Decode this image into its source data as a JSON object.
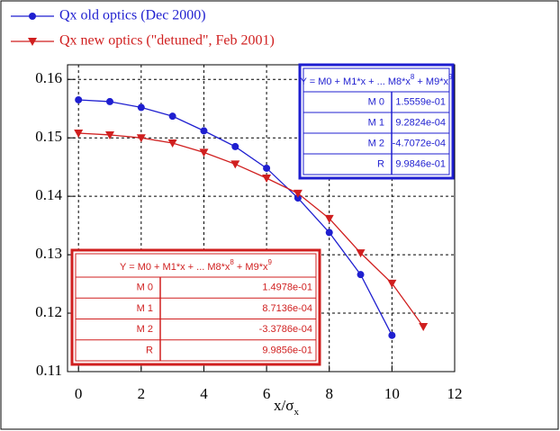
{
  "chart_data": {
    "type": "line",
    "xlabel": "x/σ",
    "xlabel_sub": "x",
    "xlim": [
      -0.35,
      12
    ],
    "ylim": [
      0.11,
      0.1625
    ],
    "xticks": [
      0,
      2,
      4,
      6,
      8,
      10,
      12
    ],
    "yticks": [
      0.11,
      0.12,
      0.13,
      0.14,
      0.15,
      0.16
    ],
    "grid": true,
    "legend": "top-left",
    "series": [
      {
        "name": "Qx old optics (Dec 2000)",
        "color": "#1f1fd0",
        "marker": "circle",
        "x": [
          0,
          1,
          2,
          3,
          4,
          5,
          6,
          7,
          8,
          9,
          10
        ],
        "values": [
          0.1565,
          0.1562,
          0.1552,
          0.1537,
          0.1512,
          0.1485,
          0.1448,
          0.1397,
          0.1338,
          0.1266,
          0.1162
        ]
      },
      {
        "name": "Qx new optics (\"detuned\", Feb 2001)",
        "color": "#d01f1f",
        "marker": "triangle-down",
        "x": [
          0,
          1,
          2,
          3,
          4,
          5,
          6,
          7,
          8,
          9,
          10,
          11
        ],
        "values": [
          0.1508,
          0.1505,
          0.15,
          0.1491,
          0.1475,
          0.1455,
          0.1431,
          0.1405,
          0.1362,
          0.1303,
          0.1251,
          0.1177
        ]
      }
    ],
    "fit_tables": [
      {
        "color": "#1f1fd0",
        "title_parts": [
          "Y = M0 + M1*x + ... M8*x",
          "8",
          "  + M9*x",
          "9"
        ],
        "rows": [
          [
            "M 0",
            "1.5559e-01"
          ],
          [
            "M 1",
            "9.2824e-04"
          ],
          [
            "M 2",
            "-4.7072e-04"
          ],
          [
            "R",
            "9.9846e-01"
          ]
        ]
      },
      {
        "color": "#d01f1f",
        "title_parts": [
          "Y = M0 + M1*x + ... M8*x",
          "8",
          "  + M9*x",
          "9"
        ],
        "rows": [
          [
            "M 0",
            "1.4978e-01"
          ],
          [
            "M 1",
            "8.7136e-04"
          ],
          [
            "M 2",
            "-3.3786e-04"
          ],
          [
            "R",
            "9.9856e-01"
          ]
        ]
      }
    ]
  }
}
